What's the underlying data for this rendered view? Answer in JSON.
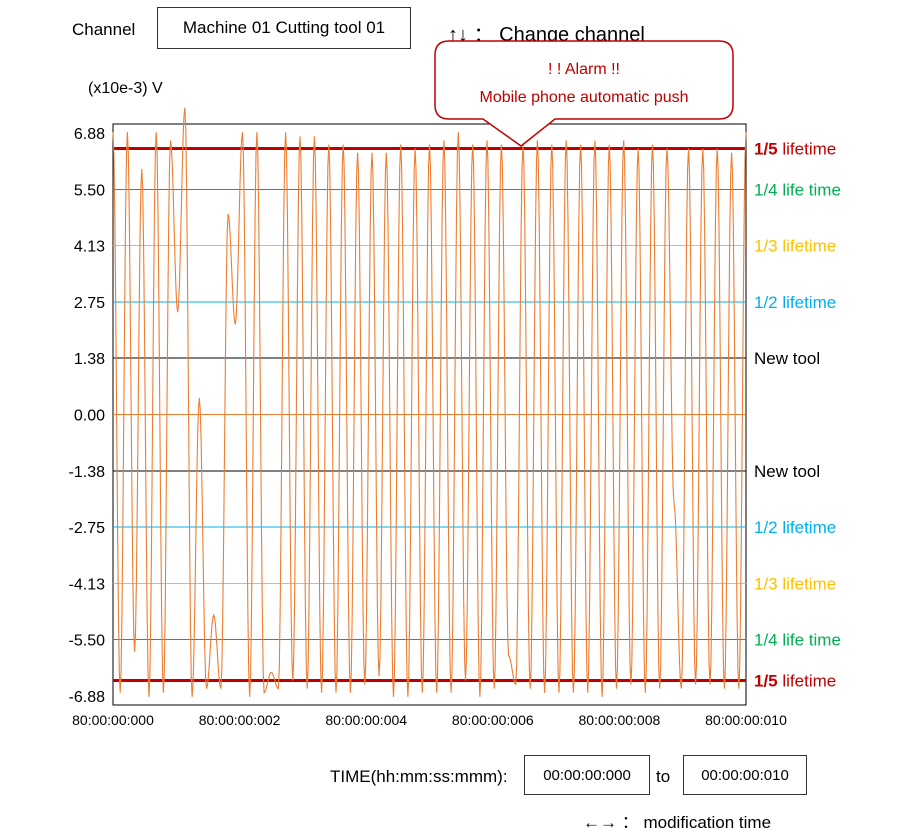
{
  "channel": {
    "label": "Channel",
    "value": "Machine 01 Cutting tool 01"
  },
  "change_channel_hint": {
    "keys": "↑↓",
    "sep": "：",
    "text": "Change channel"
  },
  "alarm": {
    "title": "! !  Alarm !!",
    "message": "Mobile phone automatic push",
    "color": "#c00000"
  },
  "time_range": {
    "label": "TIME(hh:mm:ss:mmm):",
    "from": "00:00:00:000",
    "to_label": "to",
    "to": "00:00:00:010"
  },
  "modify_hint": {
    "keys": "←→",
    "sep": "：",
    "text": "modification time"
  },
  "chart_data": {
    "type": "line",
    "ylabel": "(x10e-3) V",
    "ylim": [
      -7.1,
      7.1
    ],
    "xlim": [
      0,
      10
    ],
    "yticks": [
      "6.88",
      "5.50",
      "4.13",
      "2.75",
      "1.38",
      "0.00",
      "-1.38",
      "-2.75",
      "-4.13",
      "-5.50",
      "-6.88"
    ],
    "ytick_values": [
      6.88,
      5.5,
      4.13,
      2.75,
      1.38,
      0,
      -1.38,
      -2.75,
      -4.13,
      -5.5,
      -6.88
    ],
    "xticks": [
      "80:00:00:000",
      "80:00:00:002",
      "80:00:00:004",
      "80:00:00:006",
      "80:00:00:008",
      "80:00:00:010"
    ],
    "xtick_values": [
      0,
      2,
      4,
      6,
      8,
      10
    ],
    "thresholds": [
      {
        "label_bold": "1/5",
        "label": " lifetime",
        "value": 6.5,
        "color": "#c00000",
        "width": 3
      },
      {
        "label": "1/4 life time",
        "value": 5.5,
        "color": "#00b050",
        "width": 1
      },
      {
        "label": "1/3 lifetime",
        "value": 4.13,
        "color": "#ffc000",
        "width": 1
      },
      {
        "label": "1/2 lifetime",
        "value": 2.75,
        "color": "#00b0f0",
        "width": 1
      },
      {
        "label": "New tool",
        "value": 1.38,
        "color": "#000000",
        "width": 1
      },
      {
        "label": "",
        "value": 0,
        "color": "#ed7d31",
        "width": 1
      },
      {
        "label": "New tool",
        "value": -1.38,
        "color": "#000000",
        "width": 1
      },
      {
        "label": "1/2 lifetime",
        "value": -2.75,
        "color": "#00b0f0",
        "width": 1
      },
      {
        "label": "1/3 lifetime",
        "value": -4.13,
        "color": "#ffc000",
        "width": 1
      },
      {
        "label": "1/4 life time",
        "value": -5.5,
        "color": "#00b050",
        "width": 1
      },
      {
        "label_bold": "1/5",
        "label": " lifetime",
        "value": -6.5,
        "color": "#c00000",
        "width": 3
      }
    ],
    "series": [
      {
        "color": "#ed7d31",
        "extrema": [
          6.9,
          -6.8,
          6.9,
          -5.8,
          6.0,
          -6.9,
          6.9,
          -6.8,
          6.7,
          2.5,
          7.5,
          -6.9,
          0.4,
          -6.7,
          -4.9,
          -6.7,
          4.9,
          2.2,
          6.9,
          -6.9,
          6.9,
          -6.8,
          -6.3,
          -6.7,
          6.9,
          -6.5,
          6.8,
          -6.7,
          6.8,
          -6.8,
          6.6,
          -6.8,
          6.6,
          -6.8,
          6.4,
          -6.6,
          6.4,
          -6.4,
          6.4,
          -6.9,
          6.6,
          -6.9,
          6.5,
          -6.8,
          6.6,
          -6.8,
          6.7,
          -6.8,
          6.9,
          -6.5,
          6.6,
          -6.9,
          6.7,
          -6.7,
          6.6,
          -5.9,
          -6.6,
          6.6,
          -6.7,
          6.7,
          -6.8,
          6.6,
          -6.8,
          6.7,
          -6.8,
          6.6,
          -6.8,
          6.7,
          -6.9,
          6.6,
          -6.7,
          6.7,
          -6.6,
          6.5,
          -6.8,
          6.6,
          -6.7,
          6.5,
          -2.2,
          -6.7,
          6.5,
          -6.6,
          6.5,
          -6.6,
          6.5,
          -6.7,
          6.4,
          -6.7,
          6.9
        ]
      }
    ]
  }
}
